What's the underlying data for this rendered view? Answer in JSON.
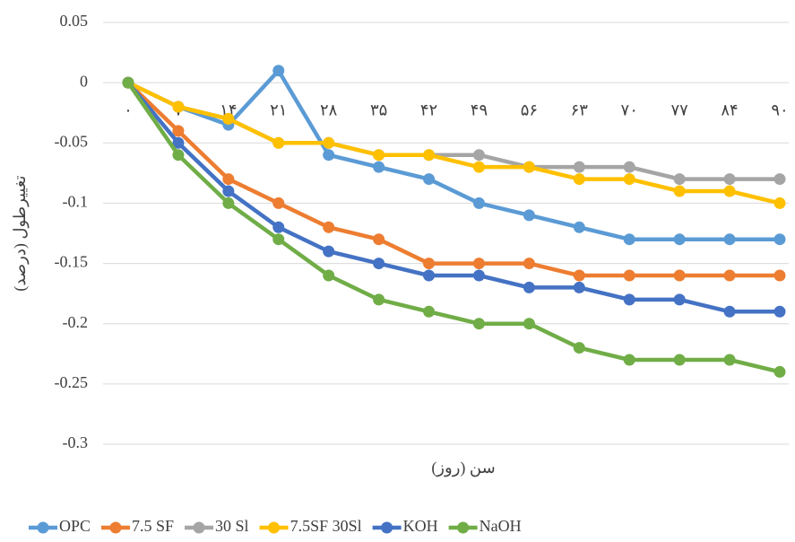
{
  "chart_data": {
    "type": "line",
    "x_label": "سن (روز)",
    "y_label": "تغییرطول (درصد)",
    "categories": [
      "۰",
      "۷",
      "۱۴",
      "۲۱",
      "۲۸",
      "۳۵",
      "۴۲",
      "۴۹",
      "۵۶",
      "۶۳",
      "۷۰",
      "۷۷",
      "۸۴",
      "۹۰"
    ],
    "ylim": [
      -0.3,
      0.05
    ],
    "yticks": [
      0.05,
      0,
      -0.05,
      -0.1,
      -0.15,
      -0.2,
      -0.25,
      -0.3
    ],
    "grid": true,
    "legend": "bottom",
    "series": [
      {
        "name": "OPC",
        "color": "#5b9bd5",
        "values": [
          0,
          -0.02,
          -0.035,
          0.01,
          -0.06,
          -0.07,
          -0.08,
          -0.1,
          -0.11,
          -0.12,
          -0.13,
          -0.13,
          -0.13,
          -0.13
        ]
      },
      {
        "name": "7.5 SF",
        "color": "#ed7d31",
        "values": [
          0,
          -0.04,
          -0.08,
          -0.1,
          -0.12,
          -0.13,
          -0.15,
          -0.15,
          -0.15,
          -0.16,
          -0.16,
          -0.16,
          -0.16,
          -0.16
        ]
      },
      {
        "name": "30 Sl",
        "color": "#a5a5a5",
        "values": [
          0,
          -0.02,
          -0.03,
          -0.05,
          -0.05,
          -0.06,
          -0.06,
          -0.06,
          -0.07,
          -0.07,
          -0.07,
          -0.08,
          -0.08,
          -0.08
        ]
      },
      {
        "name": "7.5SF 30Sl",
        "color": "#ffc000",
        "values": [
          0,
          -0.02,
          -0.03,
          -0.05,
          -0.05,
          -0.06,
          -0.06,
          -0.07,
          -0.07,
          -0.08,
          -0.08,
          -0.09,
          -0.09,
          -0.1
        ]
      },
      {
        "name": "KOH",
        "color": "#4472c4",
        "values": [
          0,
          -0.05,
          -0.09,
          -0.12,
          -0.14,
          -0.15,
          -0.16,
          -0.16,
          -0.17,
          -0.17,
          -0.18,
          -0.18,
          -0.19,
          -0.19
        ]
      },
      {
        "name": "NaOH",
        "color": "#70ad47",
        "values": [
          0,
          -0.06,
          -0.1,
          -0.13,
          -0.16,
          -0.18,
          -0.19,
          -0.2,
          -0.2,
          -0.22,
          -0.23,
          -0.23,
          -0.23,
          -0.24
        ]
      }
    ]
  }
}
